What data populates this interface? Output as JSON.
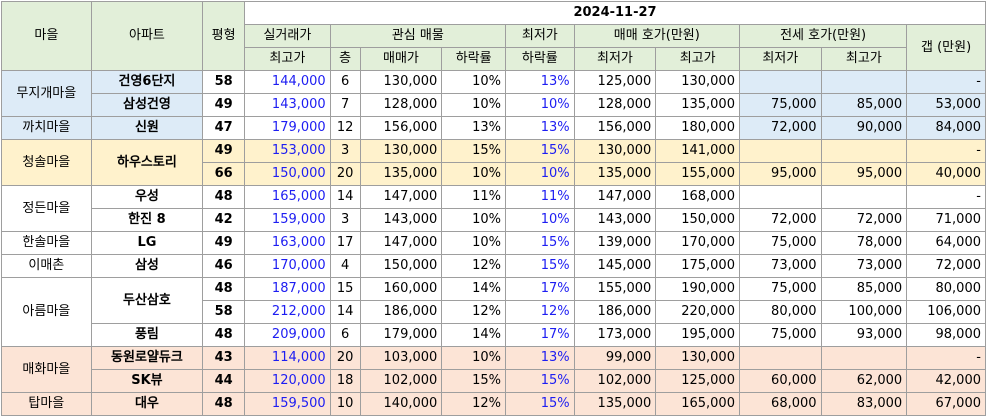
{
  "headers": {
    "village": "마을",
    "apartment": "아파트",
    "pyeong": "평형",
    "date": "2024-11-27",
    "actual_trade_top": "실거래가",
    "actual_trade_bottom": "최고가",
    "interest_group": "관심 매물",
    "floor": "층",
    "sale_price": "매매가",
    "drop_rate": "하락률",
    "min_drop_top": "최저가",
    "min_drop_bottom": "하락률",
    "sale_quote_group": "매매 호가(만원)",
    "jeonse_quote_group": "전세 호가(만원)",
    "min": "최저가",
    "max": "최고가",
    "gap": "갭 (만원)"
  },
  "villages": {
    "muji": "무지개마을",
    "kkachi": "까치마을",
    "cheongsol": "청솔마을",
    "jeongdeun": "정든마을",
    "hansol": "한솔마을",
    "imaechon": "이매촌",
    "areum": "아름마을",
    "maehwa": "매화마을",
    "tap": "탑마을"
  },
  "rows": [
    {
      "apt": "건영6단지",
      "pyeong": "58",
      "actual": "144,000",
      "floor": "6",
      "sale": "130,000",
      "drop": "10%",
      "min_drop": "13%",
      "sale_min": "125,000",
      "sale_max": "130,000",
      "j_min": "",
      "j_max": "",
      "gap": "-"
    },
    {
      "apt": "삼성건영",
      "pyeong": "49",
      "actual": "143,000",
      "floor": "7",
      "sale": "128,000",
      "drop": "10%",
      "min_drop": "10%",
      "sale_min": "128,000",
      "sale_max": "135,000",
      "j_min": "75,000",
      "j_max": "85,000",
      "gap": "53,000"
    },
    {
      "apt": "신원",
      "pyeong": "47",
      "actual": "179,000",
      "floor": "12",
      "sale": "156,000",
      "drop": "13%",
      "min_drop": "13%",
      "sale_min": "156,000",
      "sale_max": "180,000",
      "j_min": "72,000",
      "j_max": "90,000",
      "gap": "84,000"
    },
    {
      "apt": "하우스토리",
      "pyeong": "49",
      "actual": "153,000",
      "floor": "3",
      "sale": "130,000",
      "drop": "15%",
      "min_drop": "15%",
      "sale_min": "130,000",
      "sale_max": "141,000",
      "j_min": "",
      "j_max": "",
      "gap": "-"
    },
    {
      "apt": "",
      "pyeong": "66",
      "actual": "150,000",
      "floor": "20",
      "sale": "135,000",
      "drop": "10%",
      "min_drop": "10%",
      "sale_min": "135,000",
      "sale_max": "155,000",
      "j_min": "95,000",
      "j_max": "95,000",
      "gap": "40,000"
    },
    {
      "apt": "우성",
      "pyeong": "48",
      "actual": "165,000",
      "floor": "14",
      "sale": "147,000",
      "drop": "11%",
      "min_drop": "11%",
      "sale_min": "147,000",
      "sale_max": "168,000",
      "j_min": "",
      "j_max": "",
      "gap": "-"
    },
    {
      "apt": "한진 8",
      "pyeong": "42",
      "actual": "159,000",
      "floor": "3",
      "sale": "143,000",
      "drop": "10%",
      "min_drop": "10%",
      "sale_min": "143,000",
      "sale_max": "150,000",
      "j_min": "72,000",
      "j_max": "72,000",
      "gap": "71,000"
    },
    {
      "apt": "LG",
      "pyeong": "49",
      "actual": "163,000",
      "floor": "17",
      "sale": "147,000",
      "drop": "10%",
      "min_drop": "15%",
      "sale_min": "139,000",
      "sale_max": "170,000",
      "j_min": "75,000",
      "j_max": "78,000",
      "gap": "64,000"
    },
    {
      "apt": "삼성",
      "pyeong": "46",
      "actual": "170,000",
      "floor": "4",
      "sale": "150,000",
      "drop": "12%",
      "min_drop": "15%",
      "sale_min": "145,000",
      "sale_max": "175,000",
      "j_min": "73,000",
      "j_max": "73,000",
      "gap": "72,000"
    },
    {
      "apt": "두산삼호",
      "pyeong": "48",
      "actual": "187,000",
      "floor": "15",
      "sale": "160,000",
      "drop": "14%",
      "min_drop": "17%",
      "sale_min": "155,000",
      "sale_max": "190,000",
      "j_min": "75,000",
      "j_max": "85,000",
      "gap": "80,000"
    },
    {
      "apt": "",
      "pyeong": "58",
      "actual": "212,000",
      "floor": "14",
      "sale": "186,000",
      "drop": "12%",
      "min_drop": "12%",
      "sale_min": "186,000",
      "sale_max": "220,000",
      "j_min": "80,000",
      "j_max": "100,000",
      "gap": "106,000"
    },
    {
      "apt": "풍림",
      "pyeong": "48",
      "actual": "209,000",
      "floor": "6",
      "sale": "179,000",
      "drop": "14%",
      "min_drop": "17%",
      "sale_min": "173,000",
      "sale_max": "195,000",
      "j_min": "75,000",
      "j_max": "93,000",
      "gap": "98,000"
    },
    {
      "apt": "동원로얄듀크",
      "pyeong": "43",
      "actual": "114,000",
      "floor": "20",
      "sale": "103,000",
      "drop": "10%",
      "min_drop": "13%",
      "sale_min": "99,000",
      "sale_max": "130,000",
      "j_min": "",
      "j_max": "",
      "gap": "-"
    },
    {
      "apt": "SK뷰",
      "pyeong": "44",
      "actual": "120,000",
      "floor": "18",
      "sale": "102,000",
      "drop": "15%",
      "min_drop": "15%",
      "sale_min": "102,000",
      "sale_max": "125,000",
      "j_min": "60,000",
      "j_max": "62,000",
      "gap": "42,000"
    },
    {
      "apt": "대우",
      "pyeong": "48",
      "actual": "159,500",
      "floor": "10",
      "sale": "140,000",
      "drop": "12%",
      "min_drop": "15%",
      "sale_min": "135,000",
      "sale_max": "165,000",
      "j_min": "68,000",
      "j_max": "83,000",
      "gap": "67,000"
    }
  ],
  "colors": {
    "header_green": "#e2efd9",
    "blue_band": "#ddebf7",
    "yellow_band": "#fff2cc",
    "peach_band": "#fce4d6",
    "price_blue": "#1d1df2"
  }
}
